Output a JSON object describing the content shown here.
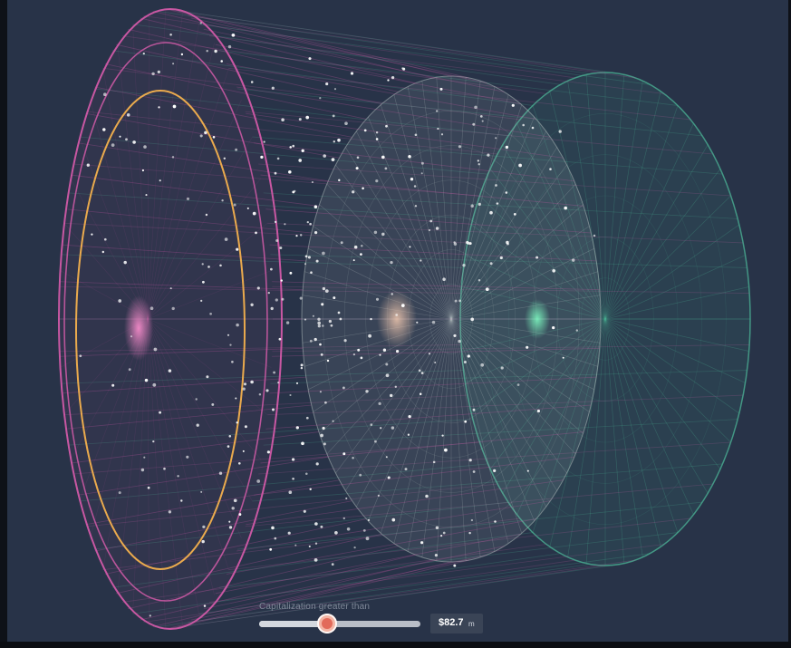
{
  "filter": {
    "label": "Capitalization greater than",
    "value_text": "$82.7",
    "unit": "m",
    "slider_level": 0.42
  },
  "visual": {
    "background_color": "#283348",
    "front_ring_color": "#d15aa8",
    "inner_ring_color": "#f4b14d",
    "mid_disc_color": "#b9c6c4",
    "back_ring_color": "#4fbf9c",
    "dot_color": "#ffffff",
    "icons": [
      "slider-thumb-icon"
    ]
  }
}
